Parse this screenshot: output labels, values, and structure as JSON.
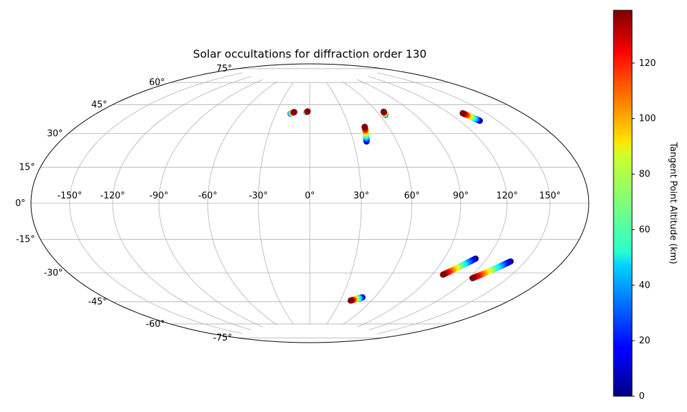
{
  "chart_data": {
    "type": "scatter",
    "projection": "hammer",
    "title": "Solar occultations for diffraction order 130",
    "grid": true,
    "lon_ticks": [
      -150,
      -120,
      -90,
      -60,
      -30,
      0,
      30,
      60,
      90,
      120,
      150
    ],
    "lon_tick_labels": [
      "-150°",
      "-120°",
      "-90°",
      "-60°",
      "-30°",
      "0°",
      "30°",
      "60°",
      "90°",
      "120°",
      "150°"
    ],
    "lat_ticks": [
      75,
      60,
      45,
      30,
      15,
      0,
      -15,
      -30,
      -45,
      -60,
      -75
    ],
    "lat_tick_labels": [
      "75°",
      "60°",
      "45°",
      "30°",
      "15°",
      "0°",
      "-15°",
      "-30°",
      "-45°",
      "-60°",
      "-75°"
    ],
    "colorbar": {
      "label": "Tangent Point Altitude (km)",
      "min": 0,
      "max": 139,
      "ticks": [
        0,
        20,
        40,
        60,
        80,
        100,
        120
      ],
      "tick_labels": [
        "0",
        "20",
        "40",
        "60",
        "80",
        "100",
        "120"
      ],
      "colormap": "jet"
    },
    "tracks": [
      {
        "start": {
          "lon": -14,
          "lat": 55,
          "alt": 139
        },
        "end": {
          "lon": -17,
          "lat": 54,
          "alt": 20
        }
      },
      {
        "start": {
          "lon": -2,
          "lat": 55.5,
          "alt": 139
        },
        "end": {
          "lon": -3,
          "lat": 55,
          "alt": 20
        }
      },
      {
        "start": {
          "lon": 42,
          "lat": 45,
          "alt": 139
        },
        "end": {
          "lon": 39,
          "lat": 36,
          "alt": 0
        }
      },
      {
        "start": {
          "lon": 66,
          "lat": 53.5,
          "alt": 139
        },
        "end": {
          "lon": 65,
          "lat": 51.5,
          "alt": 20
        }
      },
      {
        "start": {
          "lon": 131,
          "lat": 47,
          "alt": 139
        },
        "end": {
          "lon": 136,
          "lat": 42,
          "alt": 0
        }
      },
      {
        "start": {
          "lon": 40,
          "lat": -58.5,
          "alt": 139
        },
        "end": {
          "lon": 49,
          "lat": -56,
          "alt": 0
        }
      },
      {
        "start": {
          "lon": 98,
          "lat": -39,
          "alt": 139
        },
        "end": {
          "lon": 112,
          "lat": -29,
          "alt": 0
        }
      },
      {
        "start": {
          "lon": 123,
          "lat": -39,
          "alt": 139
        },
        "end": {
          "lon": 139,
          "lat": -28.5,
          "alt": 0
        }
      }
    ]
  }
}
